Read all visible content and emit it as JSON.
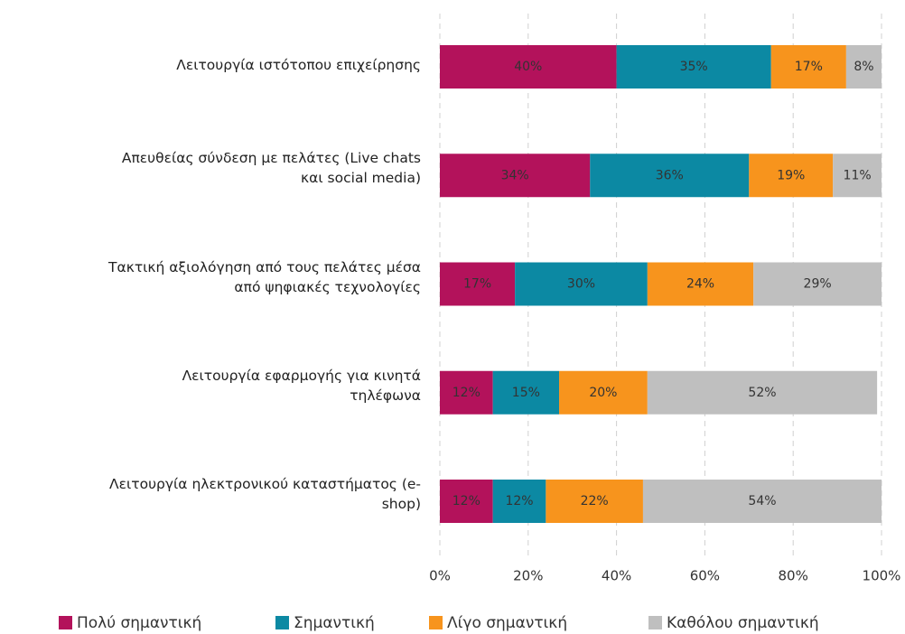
{
  "chart_data": {
    "type": "stacked_barh",
    "categories": [
      "Λειτουργία ιστότοπου επιχείρησης",
      "Απευθείας σύνδεση με πελάτες (Live chats\nκαι social media)",
      "Τακτική αξιολόγηση από τους πελάτες μέσα\nαπό ψηφιακές τεχνολογίες",
      "Λειτουργία εφαρμογής για κινητά\nτηλέφωνα",
      "Λειτουργία ηλεκτρονικού καταστήματος (e-\nshop)"
    ],
    "series": [
      {
        "name": "Πολύ σημαντική",
        "color": "#b3125b",
        "values": [
          40,
          34,
          17,
          12,
          12
        ],
        "value_labels": [
          "40%",
          "34%",
          "17%",
          "12%",
          "12%"
        ]
      },
      {
        "name": "Σημαντική",
        "color": "#0c89a3",
        "values": [
          35,
          36,
          30,
          15,
          12
        ],
        "value_labels": [
          "35%",
          "36%",
          "30%",
          "15%",
          "12%"
        ]
      },
      {
        "name": "Λίγο σημαντική",
        "color": "#f7941d",
        "values": [
          17,
          19,
          24,
          20,
          22
        ],
        "value_labels": [
          "17%",
          "19%",
          "24%",
          "20%",
          "22%"
        ]
      },
      {
        "name": "Καθόλου σημαντική",
        "color": "#bfbfbf",
        "values": [
          8,
          11,
          29,
          52,
          54
        ],
        "value_labels": [
          "8%",
          "11%",
          "29%",
          "52%",
          "54%"
        ]
      }
    ],
    "xlim": [
      0,
      100
    ],
    "xticks": [
      {
        "value": 0,
        "label": "0%"
      },
      {
        "value": 20,
        "label": "20%"
      },
      {
        "value": 40,
        "label": "40%"
      },
      {
        "value": 60,
        "label": "60%"
      },
      {
        "value": 80,
        "label": "80%"
      },
      {
        "value": 100,
        "label": "100%"
      }
    ],
    "grid": true,
    "legend": "bottom"
  }
}
